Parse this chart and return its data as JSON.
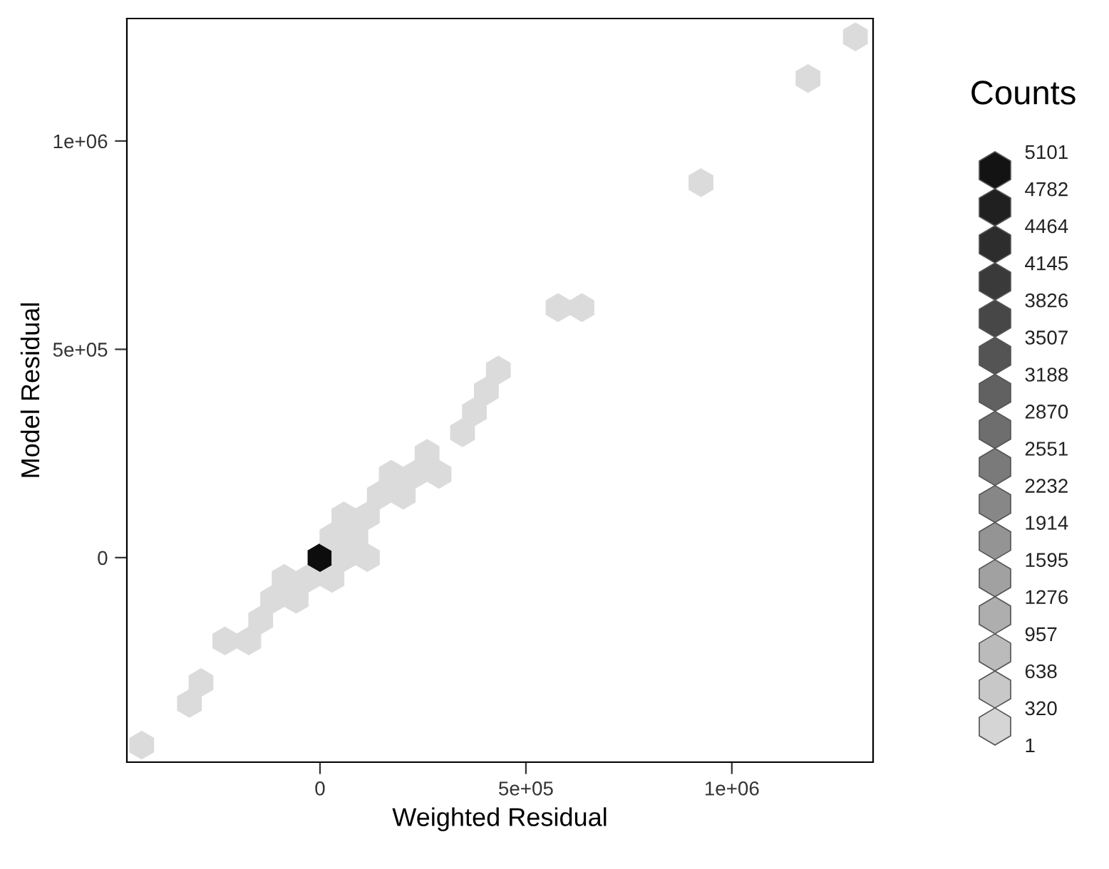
{
  "chart_data": {
    "type": "scatter",
    "xlabel": "Weighted Residual",
    "ylabel": "Model Residual",
    "clabel": "Counts",
    "x": [
      -433000,
      -317000,
      -289000,
      -231000,
      -173000,
      -144000,
      -115000,
      -58000,
      -87000,
      -29000,
      29000,
      0,
      58000,
      115000,
      29000,
      87000,
      58000,
      115000,
      144000,
      202000,
      173000,
      231000,
      289000,
      260000,
      346000,
      375000,
      404000,
      433000,
      578000,
      636000,
      925000,
      1185000,
      1300000
    ],
    "values": [
      -450000,
      -350000,
      -300000,
      -200000,
      -200000,
      -150000,
      -100000,
      -100000,
      -50000,
      -50000,
      -50000,
      0,
      0,
      0,
      50000,
      50000,
      100000,
      100000,
      150000,
      150000,
      200000,
      200000,
      200000,
      250000,
      300000,
      350000,
      400000,
      450000,
      600000,
      600000,
      900000,
      1150000,
      1250000
    ],
    "cvalues": [
      1,
      1,
      1,
      1,
      1,
      1,
      1,
      1,
      1,
      1,
      1,
      5101,
      1,
      1,
      1,
      1,
      1,
      1,
      1,
      1,
      1,
      1,
      1,
      1,
      1,
      1,
      1,
      1,
      1,
      1,
      1,
      1,
      1
    ],
    "clim": [
      1,
      5101
    ],
    "cticks": [
      5101,
      4782,
      4464,
      4145,
      3826,
      3507,
      3188,
      2870,
      2551,
      2232,
      1914,
      1595,
      1276,
      957,
      638,
      320,
      1
    ],
    "xlim": [
      -469000,
      1343000
    ],
    "ylim": [
      -491000,
      1294000
    ],
    "xticks": [
      {
        "value": 0,
        "label": "0"
      },
      {
        "value": 500000,
        "label": "5e+05"
      },
      {
        "value": 1000000,
        "label": "1e+06"
      }
    ],
    "yticks": [
      {
        "value": 0,
        "label": "0"
      },
      {
        "value": 500000,
        "label": "5e+05"
      },
      {
        "value": 1000000,
        "label": "1e+06"
      }
    ],
    "grid": false
  }
}
